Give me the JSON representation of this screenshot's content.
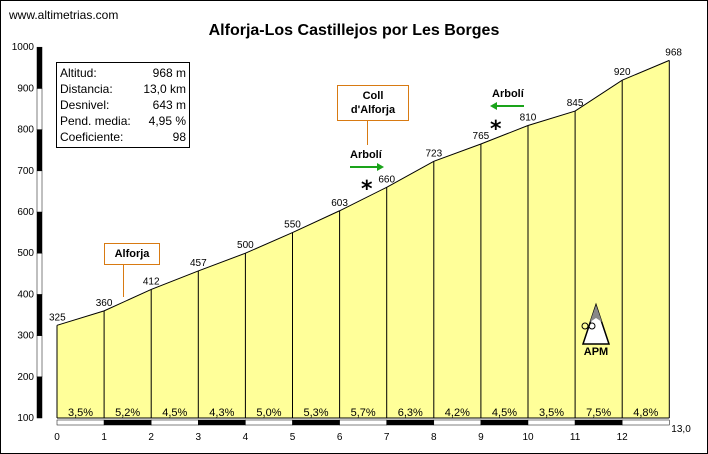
{
  "header": {
    "site": "www.altimetrias.com",
    "title": "Alforja-Los Castillejos por Les Borges"
  },
  "stats": [
    {
      "label": "Altitud:",
      "value": "968 m"
    },
    {
      "label": "Distancia:",
      "value": "13,0 km"
    },
    {
      "label": "Desnivel:",
      "value": "643 m"
    },
    {
      "label": "Pend. media:",
      "value": "4,95 %"
    },
    {
      "label": "Coeficiente:",
      "value": "98"
    }
  ],
  "annotations": {
    "alforja": "Alforja",
    "coll_line1": "Coll",
    "coll_line2": "d'Alforja",
    "arboli_1": "Arbolí",
    "arboli_2": "Arbolí",
    "star_1": "*",
    "star_2": "*",
    "apm": "APM",
    "arrow_color": "#1aa31a",
    "callout_border": "#d87a12"
  },
  "chart_data": {
    "type": "area",
    "fill_color": "#ffff99",
    "x": [
      0,
      1,
      2,
      3,
      4,
      5,
      6,
      7,
      8,
      9,
      10,
      11,
      12,
      13
    ],
    "y": [
      325,
      360,
      412,
      457,
      500,
      550,
      603,
      660,
      723,
      765,
      810,
      845,
      920,
      968
    ],
    "point_labels": [
      "325",
      "360",
      "412",
      "457",
      "500",
      "550",
      "603",
      "660",
      "723",
      "765",
      "810",
      "845",
      "920",
      "968"
    ],
    "segment_gradients": [
      "3,5%",
      "5,2%",
      "4,5%",
      "4,3%",
      "5,0%",
      "5,3%",
      "5,7%",
      "6,3%",
      "4,2%",
      "4,5%",
      "3,5%",
      "7,5%",
      "4,8%"
    ],
    "x_ticks": [
      "0",
      "1",
      "2",
      "3",
      "4",
      "5",
      "6",
      "7",
      "8",
      "9",
      "10",
      "11",
      "12",
      "13,0"
    ],
    "y_ticks": [
      "100",
      "200",
      "300",
      "400",
      "500",
      "600",
      "700",
      "800",
      "900",
      "1000"
    ],
    "y_tick_values": [
      100,
      200,
      300,
      400,
      500,
      600,
      700,
      800,
      900,
      1000
    ],
    "ylim": [
      100,
      1000
    ],
    "xlim": [
      0,
      13
    ]
  }
}
